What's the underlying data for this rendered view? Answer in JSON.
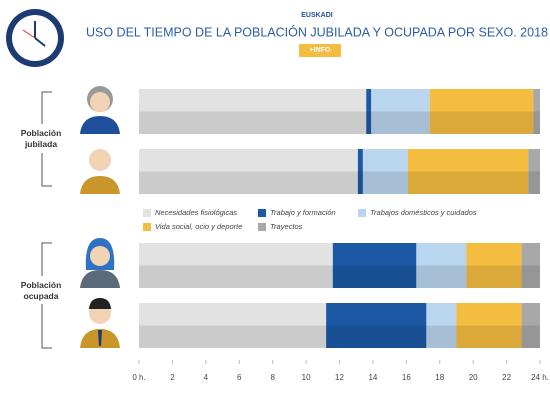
{
  "chart_data": {
    "type": "stacked-bar-horizontal",
    "kicker": "EUSKADI",
    "title": "USO DEL TIEMPO DE LA POBLACIÓN JUBILADA Y OCUPADA POR SEXO. 2018",
    "button": "+INFO",
    "groups": [
      "Población jubilada",
      "Población ocupada"
    ],
    "categories": [
      null,
      null,
      null,
      null
    ],
    "series": [
      {
        "name": "Necesidades fisiológicas",
        "color": "#e2e2e2",
        "values": [
          13.6,
          13.1,
          11.6,
          11.2
        ]
      },
      {
        "name": "Trabajo y formación",
        "color": "#1c58a4",
        "values": [
          0.3,
          0.3,
          5.0,
          6.0
        ]
      },
      {
        "name": "Trabajos domésticos y cuidados",
        "color": "#bad5ee",
        "values": [
          3.5,
          2.7,
          3.0,
          1.8
        ]
      },
      {
        "name": "Vida social, ocio y deporte",
        "color": "#f4bd40",
        "values": [
          6.2,
          7.2,
          3.3,
          3.9
        ]
      },
      {
        "name": "Trayectos",
        "color": "#a8a8a8",
        "values": [
          0.4,
          0.7,
          1.1,
          1.1
        ]
      }
    ],
    "xlim": [
      0,
      24
    ],
    "xticks": [
      {
        "value": 0,
        "label": "0 h."
      },
      2,
      4,
      6,
      8,
      10,
      12,
      14,
      16,
      18,
      20,
      22,
      {
        "value": 24,
        "label": "24 h."
      }
    ]
  }
}
